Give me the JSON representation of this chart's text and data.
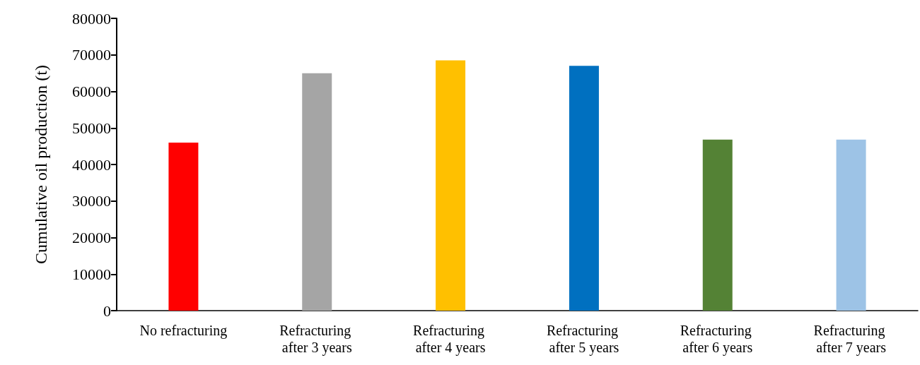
{
  "chart_data": {
    "type": "bar",
    "ylabel": "Cumulative oil production (t)",
    "categories": [
      "No refracturing",
      "Refracturing after 3 years",
      "Refracturing after 4 years",
      "Refracturing after 5 years",
      "Refracturing after 6 years",
      "Refracturing after 7 years"
    ],
    "values": [
      46000,
      65000,
      68500,
      67000,
      46800,
      46800
    ],
    "colors": [
      "#ff0000",
      "#a5a5a5",
      "#ffc000",
      "#0070c0",
      "#548235",
      "#9dc3e6"
    ],
    "ylim": [
      0,
      80000
    ],
    "yticks": [
      0,
      10000,
      20000,
      30000,
      40000,
      50000,
      60000,
      70000,
      80000
    ],
    "grid": false
  }
}
